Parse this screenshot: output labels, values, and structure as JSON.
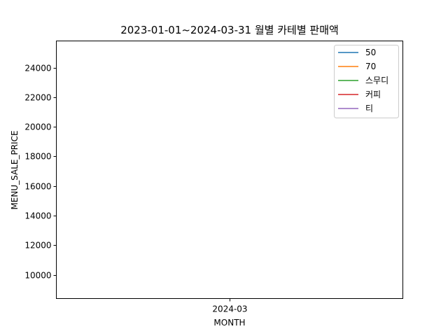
{
  "chart_data": {
    "type": "line",
    "title": "2023-01-01~2024-03-31 월별 카테별 판매액",
    "xlabel": "MONTH",
    "ylabel": "MENU_SALE_PRICE",
    "x_categories": [
      "2024-03"
    ],
    "ylim": [
      8400,
      25800
    ],
    "yticks": [
      10000,
      12000,
      14000,
      16000,
      18000,
      20000,
      22000,
      24000
    ],
    "grid": false,
    "legend_position": "top-right",
    "series": [
      {
        "name": "50",
        "color": "#1f77b4",
        "values": [
          null
        ]
      },
      {
        "name": "70",
        "color": "#ff7f0e",
        "values": [
          null
        ]
      },
      {
        "name": "스무디",
        "color": "#2ca02c",
        "values": [
          null
        ]
      },
      {
        "name": "커피",
        "color": "#d62728",
        "values": [
          null
        ]
      },
      {
        "name": "티",
        "color": "#9467bd",
        "values": [
          null
        ]
      }
    ]
  }
}
